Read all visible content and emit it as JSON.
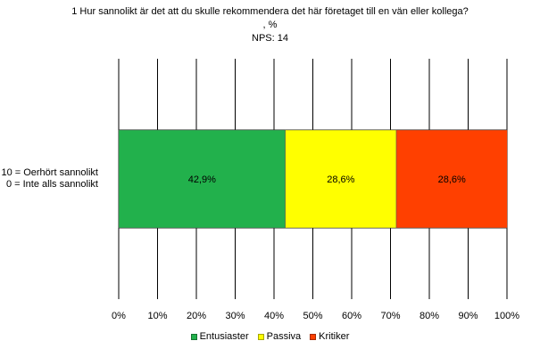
{
  "chart_data": {
    "type": "bar",
    "orientation": "horizontal-stacked",
    "title": "1  Hur sannolikt är det att du skulle rekommendera det här företaget till en vän eller kollega?",
    "subtitle": ", %",
    "nps_label": "NPS: 14",
    "categories": [
      "10 = Oerhört sannolikt\n0 =  Inte alls sannolikt"
    ],
    "category_lines": [
      "10 = Oerhört sannolikt",
      "0 =  Inte alls sannolikt"
    ],
    "series": [
      {
        "name": "Entusiaster",
        "values": [
          42.9
        ],
        "label": "42,9%",
        "color": "#22b14c"
      },
      {
        "name": "Passiva",
        "values": [
          28.6
        ],
        "label": "28,6%",
        "color": "#ffff00"
      },
      {
        "name": "Kritiker",
        "values": [
          28.6
        ],
        "label": "28,6%",
        "color": "#ff4000"
      }
    ],
    "xlim": [
      0,
      100
    ],
    "x_ticks": [
      0,
      10,
      20,
      30,
      40,
      50,
      60,
      70,
      80,
      90,
      100
    ],
    "x_tick_labels": [
      "0%",
      "10%",
      "20%",
      "30%",
      "40%",
      "50%",
      "60%",
      "70%",
      "80%",
      "90%",
      "100%"
    ],
    "grid": true,
    "legend_position": "bottom"
  }
}
